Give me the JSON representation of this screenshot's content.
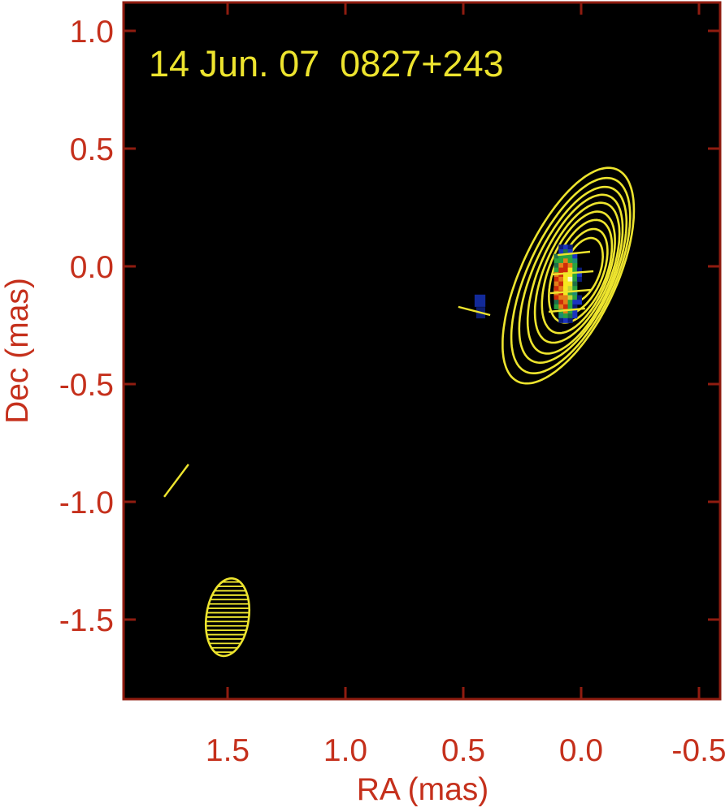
{
  "figure": {
    "title": "14 Jun. 07  0827+243",
    "xlabel": "RA (mas)",
    "ylabel": "Dec (mas)"
  },
  "colors": {
    "background": "#ffffff",
    "plot_bg": "#000000",
    "axis": "#8f1c10",
    "tick_label": "#c5301c",
    "yellow": "#ede42e"
  },
  "chart_data": {
    "type": "contour_map",
    "title": "14 Jun. 07  0827+243",
    "epoch": "14 Jun. 07",
    "source": "0827+243",
    "xlabel": "RA (mas)",
    "ylabel": "Dec (mas)",
    "axes_unit": "mas",
    "x_ticks": [
      1.5,
      1.0,
      0.5,
      0.0,
      -0.5
    ],
    "y_ticks": [
      1.0,
      0.5,
      0.0,
      -0.5,
      -1.0,
      -1.5
    ],
    "xlim": [
      1.94,
      -0.59
    ],
    "ylim": [
      -1.85,
      1.12
    ],
    "grid": false,
    "contour_color": "#ede42e",
    "contours": [
      {
        "cx": -0.003,
        "cy": -0.017,
        "rx": 0.076,
        "ry": 0.145,
        "rot": 22,
        "bulge": 0
      },
      {
        "cx": 0.0,
        "cy": -0.021,
        "rx": 0.093,
        "ry": 0.19,
        "rot": 22,
        "bulge": 0
      },
      {
        "cx": 0.003,
        "cy": -0.021,
        "rx": 0.11,
        "ry": 0.231,
        "rot": 22,
        "bulge": 0
      },
      {
        "cx": 0.01,
        "cy": -0.024,
        "rx": 0.124,
        "ry": 0.272,
        "rot": 22,
        "bulge": 0.02
      },
      {
        "cx": 0.014,
        "cy": -0.024,
        "rx": 0.138,
        "ry": 0.314,
        "rot": 23,
        "bulge": 0.035
      },
      {
        "cx": 0.021,
        "cy": -0.028,
        "rx": 0.152,
        "ry": 0.355,
        "rot": 23,
        "bulge": 0.05
      },
      {
        "cx": 0.028,
        "cy": -0.028,
        "rx": 0.166,
        "ry": 0.393,
        "rot": 24,
        "bulge": 0.07
      },
      {
        "cx": 0.034,
        "cy": -0.028,
        "rx": 0.181,
        "ry": 0.434,
        "rot": 24,
        "bulge": 0.09
      },
      {
        "cx": 0.041,
        "cy": -0.024,
        "rx": 0.198,
        "ry": 0.476,
        "rot": 24,
        "bulge": 0.11
      }
    ],
    "beam": {
      "ra": 1.5,
      "dec": -1.49,
      "rx": 0.09,
      "ry": 0.166,
      "rot": 8,
      "hatch": "horizontal"
    },
    "pol_vectors": [
      {
        "x1": 0.1,
        "y1": 0.048,
        "x2": -0.038,
        "y2": 0.062
      },
      {
        "x1": 0.121,
        "y1": -0.034,
        "x2": -0.052,
        "y2": -0.021
      },
      {
        "x1": 0.131,
        "y1": -0.114,
        "x2": -0.041,
        "y2": -0.1
      },
      {
        "x1": 0.138,
        "y1": -0.193,
        "x2": -0.017,
        "y2": -0.179
      },
      {
        "x1": 0.521,
        "y1": -0.172,
        "x2": 0.386,
        "y2": -0.207
      },
      {
        "x1": 1.769,
        "y1": -0.979,
        "x2": 1.666,
        "y2": -0.841
      }
    ],
    "core_pixels": {
      "origin_ra": 0.115,
      "origin_dec": 0.092,
      "cell": 0.0195,
      "palette": {
        "B": "#1a33c0",
        "b": "#0a1c7a",
        "T": "#1d8a78",
        "G": "#2aa33e",
        "g": "#1f6f4a",
        "O": "#e57f17",
        "R": "#cf2c0a",
        "Y": "#f6e81f",
        "y": "#c3d434",
        "W": "#fbf9c5"
      },
      "rows": [
        ".bBb..",
        ".BgB..",
        "gGGGB.",
        "GGOGT.",
        "gOROG.",
        "GRRYGb",
        "ORYYGB",
        "ROYWGb",
        "ORYYg.",
        "ROYyG.",
        "ORYGT.",
        "ROOyGb",
        "gROGBB",
        "GORGb.",
        ".GOGB.",
        ".TGgB.",
        ".bBb.."
      ]
    },
    "jet_pixels": [
      {
        "ra": 0.452,
        "dec": -0.12,
        "w": 0.046,
        "h": 0.052,
        "color": "#122a9a"
      },
      {
        "ra": 0.445,
        "dec": -0.173,
        "w": 0.038,
        "h": 0.048,
        "color": "#0c1d6e"
      }
    ]
  }
}
